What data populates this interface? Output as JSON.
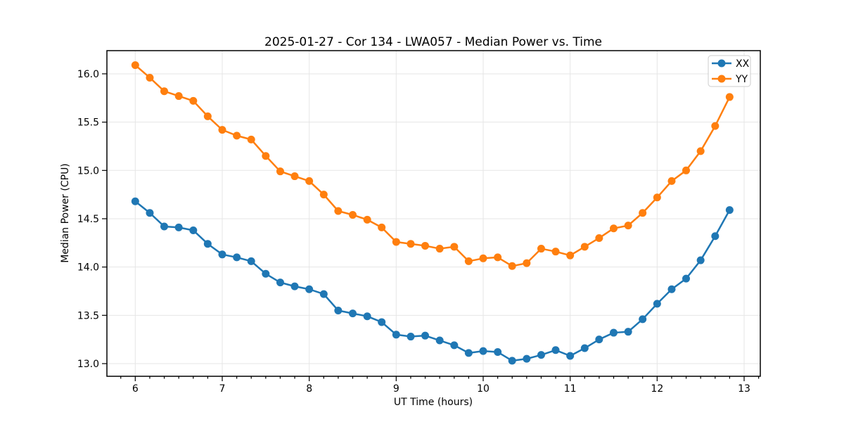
{
  "chart_data": {
    "type": "line",
    "title": "2025-01-27 - Cor 134 - LWA057 - Median Power vs. Time",
    "xlabel": "UT Time (hours)",
    "ylabel": "Median Power (CPU)",
    "xlim": [
      5.674,
      13.186
    ],
    "ylim": [
      12.869,
      16.24
    ],
    "x_major_ticks": [
      6,
      7,
      8,
      9,
      10,
      11,
      12,
      13
    ],
    "x_minor_step": 0.166667,
    "y_ticks": [
      13.0,
      13.5,
      14.0,
      14.5,
      15.0,
      15.5,
      16.0
    ],
    "grid": true,
    "legend_position": "upper right",
    "marker": "circle",
    "x": [
      6.0,
      6.167,
      6.333,
      6.5,
      6.667,
      6.833,
      7.0,
      7.167,
      7.333,
      7.5,
      7.667,
      7.833,
      8.0,
      8.167,
      8.333,
      8.5,
      8.667,
      8.833,
      9.0,
      9.167,
      9.333,
      9.5,
      9.667,
      9.833,
      10.0,
      10.167,
      10.333,
      10.5,
      10.667,
      10.833,
      11.0,
      11.167,
      11.333,
      11.5,
      11.667,
      11.833,
      12.0,
      12.167,
      12.333,
      12.5,
      12.667,
      12.833
    ],
    "series": [
      {
        "name": "XX",
        "color": "#1f77b4",
        "values": [
          14.68,
          14.56,
          14.42,
          14.41,
          14.38,
          14.24,
          14.13,
          14.1,
          14.06,
          13.93,
          13.84,
          13.8,
          13.77,
          13.72,
          13.55,
          13.52,
          13.49,
          13.43,
          13.3,
          13.28,
          13.29,
          13.24,
          13.19,
          13.11,
          13.13,
          13.12,
          13.03,
          13.05,
          13.09,
          13.14,
          13.08,
          13.16,
          13.25,
          13.32,
          13.33,
          13.46,
          13.62,
          13.77,
          13.88,
          14.07,
          14.32,
          14.59
        ]
      },
      {
        "name": "YY",
        "color": "#ff7f0e",
        "values": [
          16.09,
          15.96,
          15.82,
          15.77,
          15.72,
          15.56,
          15.42,
          15.36,
          15.32,
          15.15,
          14.99,
          14.94,
          14.89,
          14.75,
          14.58,
          14.54,
          14.49,
          14.41,
          14.26,
          14.24,
          14.22,
          14.19,
          14.21,
          14.06,
          14.09,
          14.1,
          14.01,
          14.04,
          14.19,
          14.16,
          14.12,
          14.21,
          14.3,
          14.4,
          14.43,
          14.56,
          14.72,
          14.89,
          15.0,
          15.2,
          15.46,
          15.76
        ]
      }
    ]
  }
}
